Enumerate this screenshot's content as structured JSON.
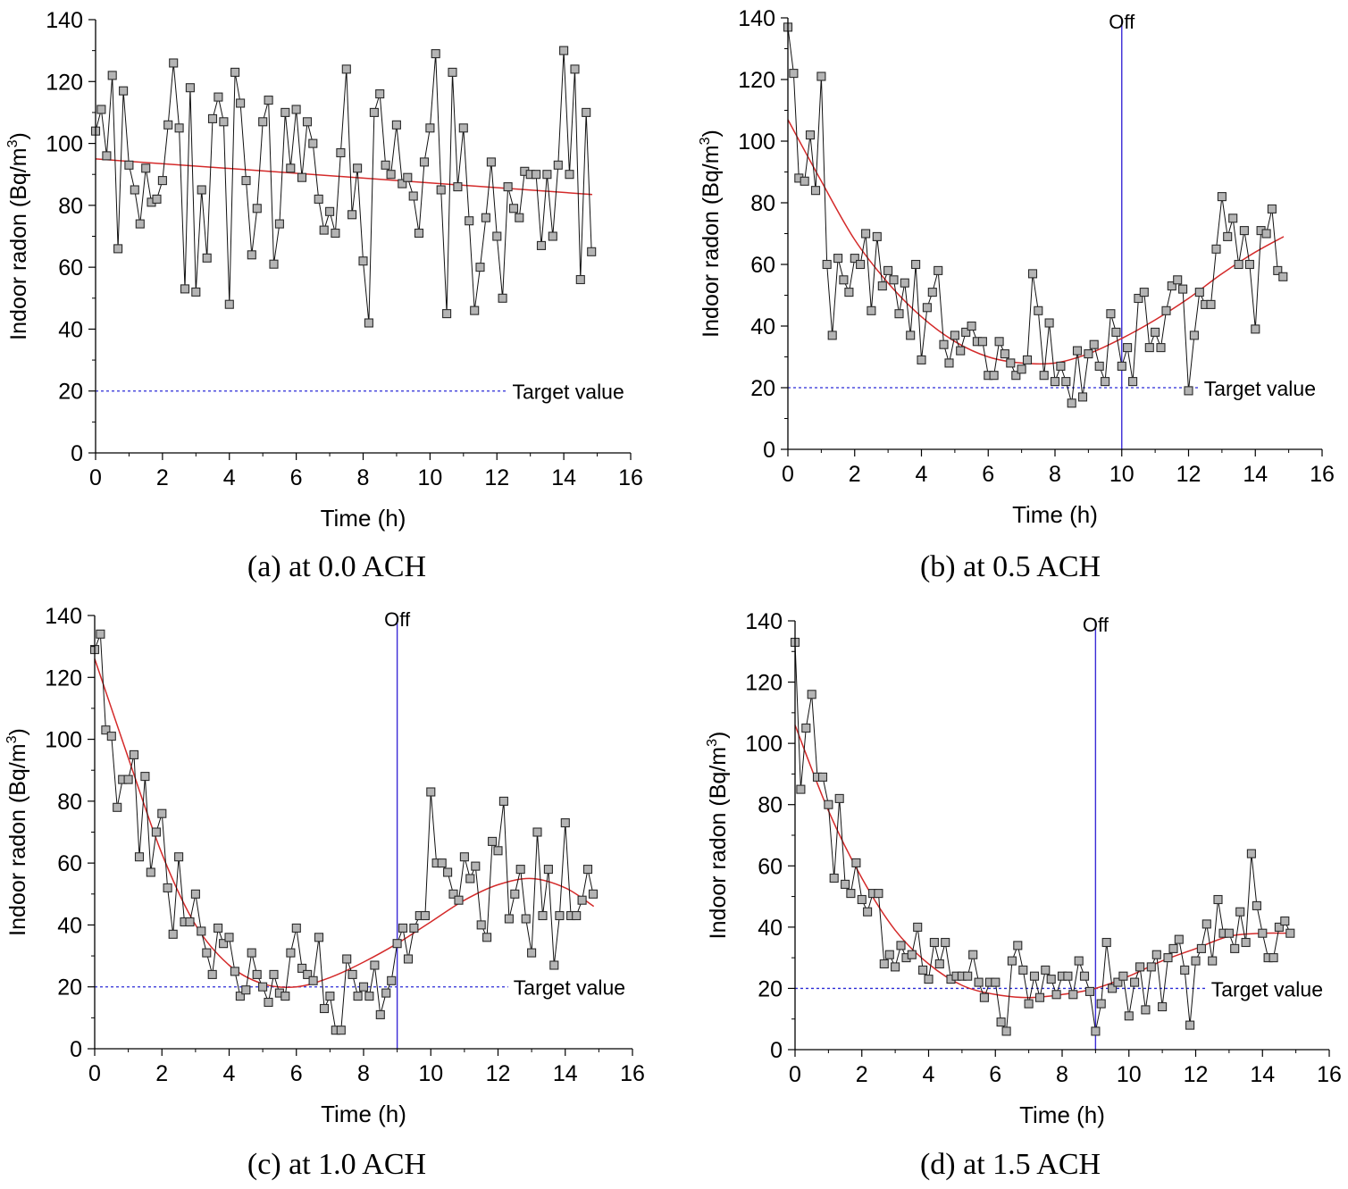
{
  "chart_data": [
    {
      "type": "line",
      "caption": "(a) at 0.0 ACH",
      "xlabel": "Time (h)",
      "ylabel": "Indoor radon (Bq/m",
      "ylabel_sup": "3",
      "ylabel_close": ")",
      "xlim": [
        0,
        16
      ],
      "ylim": [
        0,
        140
      ],
      "xticks": [
        "0",
        "2",
        "4",
        "6",
        "8",
        "10",
        "12",
        "14",
        "16"
      ],
      "yticks": [
        "0",
        "20",
        "40",
        "60",
        "80",
        "100",
        "120",
        "140"
      ],
      "xtick_values": [
        0,
        2,
        4,
        6,
        8,
        10,
        12,
        14,
        16
      ],
      "ytick_values": [
        0,
        20,
        40,
        60,
        80,
        100,
        120,
        140
      ],
      "target": {
        "value": 20,
        "label": "Target value",
        "x_end": 12.3
      },
      "off_marker": null,
      "series": [
        {
          "name": "Indoor radon",
          "x": [
            0,
            0.17,
            0.33,
            0.5,
            0.67,
            0.83,
            1.0,
            1.17,
            1.33,
            1.5,
            1.67,
            1.83,
            2.0,
            2.17,
            2.33,
            2.5,
            2.67,
            2.83,
            3.0,
            3.17,
            3.33,
            3.5,
            3.67,
            3.83,
            4.0,
            4.17,
            4.33,
            4.5,
            4.67,
            4.83,
            5.0,
            5.17,
            5.33,
            5.5,
            5.67,
            5.83,
            6.0,
            6.17,
            6.33,
            6.5,
            6.67,
            6.83,
            7.0,
            7.17,
            7.33,
            7.5,
            7.67,
            7.83,
            8.0,
            8.17,
            8.33,
            8.5,
            8.67,
            8.83,
            9.0,
            9.17,
            9.33,
            9.5,
            9.67,
            9.83,
            10.0,
            10.17,
            10.33,
            10.5,
            10.67,
            10.83,
            11.0,
            11.17,
            11.33,
            11.5,
            11.67,
            11.83,
            12.0,
            12.17,
            12.33,
            12.5,
            12.67,
            12.83,
            13.0,
            13.17,
            13.33,
            13.5,
            13.67,
            13.83,
            14.0,
            14.17,
            14.33,
            14.5,
            14.67,
            14.83
          ],
          "values": [
            104,
            111,
            96,
            122,
            66,
            117,
            93,
            85,
            74,
            92,
            81,
            82,
            88,
            106,
            126,
            105,
            53,
            118,
            52,
            85,
            63,
            108,
            115,
            107,
            48,
            123,
            113,
            88,
            64,
            79,
            107,
            114,
            61,
            74,
            110,
            92,
            111,
            89,
            107,
            100,
            82,
            72,
            78,
            71,
            97,
            124,
            77,
            92,
            62,
            42,
            110,
            116,
            93,
            90,
            106,
            87,
            89,
            83,
            71,
            94,
            105,
            129,
            85,
            45,
            123,
            86,
            105,
            75,
            46,
            60,
            76,
            94,
            70,
            50,
            86,
            79,
            76,
            91,
            90,
            90,
            67,
            90,
            70,
            93,
            130,
            90,
            124,
            56,
            110,
            65
          ]
        }
      ],
      "trend": {
        "x": [
          0,
          14.85
        ],
        "y": [
          95,
          83.5
        ],
        "curve": "linear"
      }
    },
    {
      "type": "line",
      "caption": "(b) at 0.5 ACH",
      "xlabel": "Time (h)",
      "ylabel": "Indoor radon (Bq/m",
      "ylabel_sup": "3",
      "ylabel_close": ")",
      "xlim": [
        0,
        16
      ],
      "ylim": [
        0,
        140
      ],
      "xticks": [
        "0",
        "2",
        "4",
        "6",
        "8",
        "10",
        "12",
        "14",
        "16"
      ],
      "yticks": [
        "0",
        "20",
        "40",
        "60",
        "80",
        "100",
        "120",
        "140"
      ],
      "xtick_values": [
        0,
        2,
        4,
        6,
        8,
        10,
        12,
        14,
        16
      ],
      "ytick_values": [
        0,
        20,
        40,
        60,
        80,
        100,
        120,
        140
      ],
      "target": {
        "value": 20,
        "label": "Target value",
        "x_end": 12.3
      },
      "off_marker": {
        "x": 10,
        "label": "Off"
      },
      "series": [
        {
          "name": "Indoor radon",
          "x": [
            0,
            0.17,
            0.33,
            0.5,
            0.67,
            0.83,
            1.0,
            1.17,
            1.33,
            1.5,
            1.67,
            1.83,
            2.0,
            2.17,
            2.33,
            2.5,
            2.67,
            2.83,
            3.0,
            3.17,
            3.33,
            3.5,
            3.67,
            3.83,
            4.0,
            4.17,
            4.33,
            4.5,
            4.67,
            4.83,
            5.0,
            5.17,
            5.33,
            5.5,
            5.67,
            5.83,
            6.0,
            6.17,
            6.33,
            6.5,
            6.67,
            6.83,
            7.0,
            7.17,
            7.33,
            7.5,
            7.67,
            7.83,
            8.0,
            8.17,
            8.33,
            8.5,
            8.67,
            8.83,
            9.0,
            9.17,
            9.33,
            9.5,
            9.67,
            9.83,
            10.0,
            10.17,
            10.33,
            10.5,
            10.67,
            10.83,
            11.0,
            11.17,
            11.33,
            11.5,
            11.67,
            11.83,
            12.0,
            12.17,
            12.33,
            12.5,
            12.67,
            12.83,
            13.0,
            13.17,
            13.33,
            13.5,
            13.67,
            13.83,
            14.0,
            14.17,
            14.33,
            14.5,
            14.67,
            14.83
          ],
          "values": [
            137,
            122,
            88,
            87,
            102,
            84,
            121,
            60,
            37,
            62,
            55,
            51,
            62,
            60,
            70,
            45,
            69,
            53,
            58,
            55,
            44,
            54,
            37,
            60,
            29,
            46,
            51,
            58,
            34,
            28,
            37,
            32,
            38,
            40,
            35,
            35,
            24,
            24,
            35,
            31,
            28,
            24,
            26,
            29,
            57,
            45,
            24,
            41,
            22,
            27,
            22,
            15,
            32,
            17,
            31,
            34,
            27,
            22,
            44,
            38,
            27,
            33,
            22,
            49,
            51,
            33,
            38,
            33,
            45,
            53,
            55,
            52,
            19,
            37,
            51,
            47,
            47,
            65,
            82,
            69,
            75,
            60,
            71,
            60,
            39,
            71,
            70,
            78,
            58,
            56
          ]
        }
      ],
      "trend": {
        "x": [
          0,
          1,
          2,
          3,
          4,
          5,
          6,
          7,
          8,
          9,
          10,
          11,
          12,
          13,
          14,
          14.85
        ],
        "y": [
          107,
          87,
          68,
          54,
          43,
          35,
          30,
          28,
          28,
          31,
          36,
          42,
          49,
          57,
          64,
          69
        ],
        "curve": "smooth"
      }
    },
    {
      "type": "line",
      "caption": "(c) at 1.0 ACH",
      "xlabel": "Time (h)",
      "ylabel": "Indoor radon (Bq/m",
      "ylabel_sup": "3",
      "ylabel_close": ")",
      "xlim": [
        0,
        16
      ],
      "ylim": [
        0,
        140
      ],
      "xticks": [
        "0",
        "2",
        "4",
        "6",
        "8",
        "10",
        "12",
        "14",
        "16"
      ],
      "yticks": [
        "0",
        "20",
        "40",
        "60",
        "80",
        "100",
        "120",
        "140"
      ],
      "xtick_values": [
        0,
        2,
        4,
        6,
        8,
        10,
        12,
        14,
        16
      ],
      "ytick_values": [
        0,
        20,
        40,
        60,
        80,
        100,
        120,
        140
      ],
      "target": {
        "value": 20,
        "label": "Target value",
        "x_end": 12.3
      },
      "off_marker": {
        "x": 9,
        "label": "Off"
      },
      "series": [
        {
          "name": "Indoor radon",
          "x": [
            0,
            0.17,
            0.33,
            0.5,
            0.67,
            0.83,
            1.0,
            1.17,
            1.33,
            1.5,
            1.67,
            1.83,
            2.0,
            2.17,
            2.33,
            2.5,
            2.67,
            2.83,
            3.0,
            3.17,
            3.33,
            3.5,
            3.67,
            3.83,
            4.0,
            4.17,
            4.33,
            4.5,
            4.67,
            4.83,
            5.0,
            5.17,
            5.33,
            5.5,
            5.67,
            5.83,
            6.0,
            6.17,
            6.33,
            6.5,
            6.67,
            6.83,
            7.0,
            7.17,
            7.33,
            7.5,
            7.67,
            7.83,
            8.0,
            8.17,
            8.33,
            8.5,
            8.67,
            8.83,
            9.0,
            9.17,
            9.33,
            9.5,
            9.67,
            9.83,
            10.0,
            10.17,
            10.33,
            10.5,
            10.67,
            10.83,
            11.0,
            11.17,
            11.33,
            11.5,
            11.67,
            11.83,
            12.0,
            12.17,
            12.33,
            12.5,
            12.67,
            12.83,
            13.0,
            13.17,
            13.33,
            13.5,
            13.67,
            13.83,
            14.0,
            14.17,
            14.33,
            14.5,
            14.67,
            14.83
          ],
          "values": [
            129,
            134,
            103,
            101,
            78,
            87,
            87,
            95,
            62,
            88,
            57,
            70,
            76,
            52,
            37,
            62,
            41,
            41,
            50,
            38,
            31,
            24,
            39,
            34,
            36,
            25,
            17,
            19,
            31,
            24,
            20,
            15,
            24,
            18,
            17,
            31,
            39,
            26,
            24,
            22,
            36,
            13,
            17,
            6,
            6,
            29,
            24,
            17,
            20,
            17,
            27,
            11,
            18,
            22,
            34,
            39,
            29,
            39,
            43,
            43,
            83,
            60,
            60,
            57,
            50,
            48,
            62,
            55,
            59,
            40,
            36,
            67,
            64,
            80,
            42,
            50,
            58,
            42,
            31,
            70,
            43,
            58,
            27,
            43,
            73,
            43,
            43,
            48,
            58,
            50
          ]
        }
      ],
      "trend": {
        "x": [
          0,
          1,
          2,
          3,
          4,
          5,
          6,
          7,
          8,
          9,
          10,
          11,
          12,
          13,
          14,
          14.85
        ],
        "y": [
          126,
          94,
          63,
          40,
          27,
          21,
          20,
          23,
          28,
          34,
          41,
          48,
          53,
          55,
          52,
          46
        ],
        "curve": "smooth"
      }
    },
    {
      "type": "line",
      "caption": "(d) at 1.5 ACH",
      "xlabel": "Time (h)",
      "ylabel": "Indoor radon (Bq/m",
      "ylabel_sup": "3",
      "ylabel_close": ")",
      "xlim": [
        0,
        16
      ],
      "ylim": [
        0,
        140
      ],
      "xticks": [
        "0",
        "2",
        "4",
        "6",
        "8",
        "10",
        "12",
        "14",
        "16"
      ],
      "yticks": [
        "0",
        "20",
        "40",
        "60",
        "80",
        "100",
        "120",
        "140"
      ],
      "xtick_values": [
        0,
        2,
        4,
        6,
        8,
        10,
        12,
        14,
        16
      ],
      "ytick_values": [
        0,
        20,
        40,
        60,
        80,
        100,
        120,
        140
      ],
      "target": {
        "value": 20,
        "label": "Target value",
        "x_end": 12.3
      },
      "off_marker": {
        "x": 9,
        "label": "Off"
      },
      "series": [
        {
          "name": "Indoor radon",
          "x": [
            0,
            0.17,
            0.33,
            0.5,
            0.67,
            0.83,
            1.0,
            1.17,
            1.33,
            1.5,
            1.67,
            1.83,
            2.0,
            2.17,
            2.33,
            2.5,
            2.67,
            2.83,
            3.0,
            3.17,
            3.33,
            3.5,
            3.67,
            3.83,
            4.0,
            4.17,
            4.33,
            4.5,
            4.67,
            4.83,
            5.0,
            5.17,
            5.33,
            5.5,
            5.67,
            5.83,
            6.0,
            6.17,
            6.33,
            6.5,
            6.67,
            6.83,
            7.0,
            7.17,
            7.33,
            7.5,
            7.67,
            7.83,
            8.0,
            8.17,
            8.33,
            8.5,
            8.67,
            8.83,
            9.0,
            9.17,
            9.33,
            9.5,
            9.67,
            9.83,
            10.0,
            10.17,
            10.33,
            10.5,
            10.67,
            10.83,
            11.0,
            11.17,
            11.33,
            11.5,
            11.67,
            11.83,
            12.0,
            12.17,
            12.33,
            12.5,
            12.67,
            12.83,
            13.0,
            13.17,
            13.33,
            13.5,
            13.67,
            13.83,
            14.0,
            14.17,
            14.33,
            14.5,
            14.67,
            14.83
          ],
          "values": [
            133,
            85,
            105,
            116,
            89,
            89,
            80,
            56,
            82,
            54,
            51,
            61,
            49,
            45,
            51,
            51,
            28,
            31,
            27,
            34,
            30,
            31,
            40,
            26,
            23,
            35,
            28,
            35,
            23,
            24,
            24,
            24,
            31,
            22,
            17,
            22,
            22,
            9,
            6,
            29,
            34,
            26,
            15,
            24,
            17,
            26,
            23,
            18,
            24,
            24,
            18,
            29,
            24,
            19,
            6,
            15,
            35,
            20,
            22,
            24,
            11,
            22,
            27,
            13,
            27,
            31,
            14,
            30,
            33,
            36,
            26,
            8,
            29,
            33,
            41,
            29,
            49,
            38,
            38,
            33,
            45,
            35,
            64,
            47,
            38,
            30,
            30,
            40,
            42,
            38
          ]
        }
      ],
      "trend": {
        "x": [
          0,
          1,
          2,
          3,
          4,
          5,
          6,
          7,
          8,
          9,
          10,
          11,
          12,
          13,
          14,
          14.85
        ],
        "y": [
          106,
          78,
          56,
          39,
          28,
          21,
          18,
          17,
          18,
          20,
          24,
          29,
          33,
          37,
          38,
          38
        ],
        "curve": "smooth"
      }
    }
  ]
}
